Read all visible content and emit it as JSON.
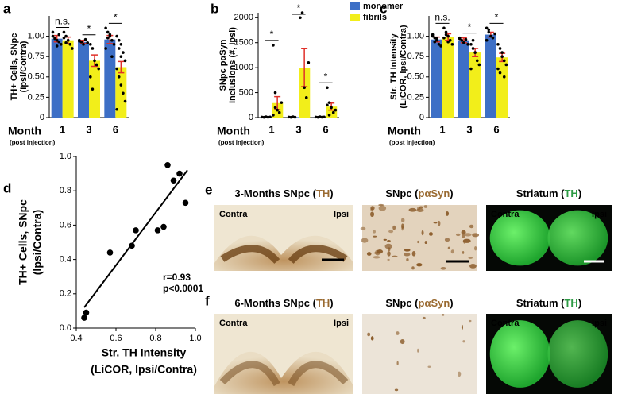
{
  "chart_data": [
    {
      "type": "bar",
      "panel_label": "a",
      "ylabel": [
        "TH+ Cells, SNpc",
        "(Ipsi/Contra)"
      ],
      "xlabel": "Month",
      "xlabel_note": "(post injection)",
      "categories": [
        "1",
        "3",
        "6"
      ],
      "ylim": [
        0,
        1.25
      ],
      "yticks": [
        0,
        0.25,
        {
          "value": 0.5,
          "label": "0.50"
        },
        0.75,
        {
          "value": 1,
          "label": "1.00"
        }
      ],
      "significance": [
        "n.s.",
        "*",
        "*"
      ],
      "series": [
        {
          "name": "monomer",
          "color": "#3d6fc6",
          "values": [
            0.97,
            0.93,
            0.96
          ],
          "errors": [
            0.04,
            0.02,
            0.05
          ],
          "points": [
            [
              1.0,
              0.98,
              0.95,
              0.93,
              0.9,
              1.05,
              0.97,
              0.88,
              1.02
            ],
            [
              0.95,
              0.93,
              0.9,
              0.96,
              0.92,
              0.94
            ],
            [
              1.1,
              1.05,
              1.0,
              0.95,
              0.9,
              0.85,
              0.98,
              1.02,
              0.75
            ]
          ]
        },
        {
          "name": "fibrils",
          "color": "#f2ee1a",
          "values": [
            0.95,
            0.7,
            0.62
          ],
          "errors": [
            0.04,
            0.07,
            0.07
          ],
          "points": [
            [
              1.05,
              1.0,
              0.95,
              0.9,
              0.85,
              0.98,
              0.92
            ],
            [
              0.9,
              0.85,
              0.7,
              0.65,
              0.6,
              0.5,
              0.35
            ],
            [
              1.0,
              0.95,
              0.9,
              0.8,
              0.7,
              0.6,
              0.5,
              0.4,
              0.3,
              0.2,
              0.1,
              0.85,
              0.75
            ]
          ]
        }
      ]
    },
    {
      "type": "bar",
      "panel_label": "b",
      "ylabel": [
        "SNpc pαSyn",
        "Inclusions (#, Ipsi)"
      ],
      "xlabel": "Month",
      "xlabel_note": "(post injection)",
      "categories": [
        "1",
        "3",
        "6"
      ],
      "ylim": [
        0,
        2100
      ],
      "yticks": [
        0,
        500,
        1000,
        1500,
        2000
      ],
      "significance": [
        "*",
        "*",
        "*"
      ],
      "legend": "upper right",
      "series": [
        {
          "name": "monomer",
          "color": "#3d6fc6",
          "values": [
            10,
            10,
            10
          ],
          "errors": [
            5,
            5,
            5
          ],
          "points": [
            [
              10,
              5,
              15,
              8,
              12
            ],
            [
              10,
              5,
              15,
              8
            ],
            [
              10,
              5,
              15,
              8,
              12
            ]
          ]
        },
        {
          "name": "fibrils",
          "color": "#f2ee1a",
          "values": [
            290,
            1000,
            220
          ],
          "errors": [
            130,
            380,
            70
          ],
          "points": [
            [
              1450,
              200,
              150,
              100,
              300,
              50,
              500
            ],
            [
              2000,
              2100,
              600,
              400,
              1100
            ],
            [
              600,
              300,
              200,
              100,
              150,
              250,
              50
            ]
          ]
        }
      ]
    },
    {
      "type": "bar",
      "panel_label": "c",
      "ylabel": [
        "Str. TH Intensity",
        "(LiCOR, Ipsi/Contra)"
      ],
      "xlabel": "Month",
      "xlabel_note": "(post injection)",
      "categories": [
        "1",
        "3",
        "6"
      ],
      "ylim": [
        0,
        1.25
      ],
      "yticks": [
        0,
        0.25,
        {
          "value": 0.5,
          "label": "0.50"
        },
        0.75,
        {
          "value": 1,
          "label": "1.00"
        }
      ],
      "significance": [
        "n.s.",
        "*",
        "*"
      ],
      "series": [
        {
          "name": "monomer",
          "color": "#3d6fc6",
          "values": [
            0.96,
            0.95,
            1.02
          ],
          "errors": [
            0.03,
            0.03,
            0.03
          ],
          "points": [
            [
              1.0,
              0.98,
              0.95,
              0.9,
              0.88,
              1.02,
              0.93,
              0.97
            ],
            [
              0.98,
              0.95,
              0.92,
              0.96,
              0.9,
              0.97
            ],
            [
              1.1,
              1.05,
              1.0,
              0.98,
              1.03,
              0.95,
              1.08
            ]
          ]
        },
        {
          "name": "fibrils",
          "color": "#f2ee1a",
          "values": [
            0.99,
            0.8,
            0.74
          ],
          "errors": [
            0.04,
            0.05,
            0.05
          ],
          "points": [
            [
              1.1,
              1.05,
              1.0,
              0.95,
              0.9,
              0.98,
              1.02,
              0.93
            ],
            [
              0.9,
              0.85,
              0.8,
              0.7,
              0.65,
              0.6,
              0.95
            ],
            [
              0.9,
              0.85,
              0.8,
              0.7,
              0.65,
              0.6,
              0.55,
              0.75,
              0.5
            ]
          ]
        }
      ]
    },
    {
      "type": "scatter",
      "panel_label": "d",
      "ylabel": [
        "TH+ Cells, SNpc",
        "(Ipsi/Contra)"
      ],
      "xlabel": [
        "Str. TH Intensity",
        "(LiCOR, Ipsi/Contra)"
      ],
      "xlim": [
        0.4,
        1.0
      ],
      "xticks": [
        0.4,
        0.6,
        0.8,
        {
          "value": 1,
          "label": "1.0"
        }
      ],
      "ylim": [
        0,
        1
      ],
      "yticks": [
        {
          "value": 0,
          "label": "0.0"
        },
        0.2,
        0.4,
        0.6,
        0.8,
        {
          "value": 1,
          "label": "1.0"
        }
      ],
      "x": [
        0.44,
        0.45,
        0.57,
        0.68,
        0.7,
        0.81,
        0.84,
        0.86,
        0.89,
        0.92,
        0.95
      ],
      "y": [
        0.06,
        0.09,
        0.44,
        0.48,
        0.57,
        0.57,
        0.59,
        0.95,
        0.86,
        0.9,
        0.73
      ],
      "color": "#000000",
      "fit": {
        "x": [
          0.44,
          0.96
        ],
        "y": [
          0.12,
          0.92
        ]
      },
      "annotations": [
        "r=0.93",
        "p<0.0001"
      ]
    }
  ],
  "images": [
    {
      "panel": "e",
      "tiles": [
        {
          "title": [
            "3-Months SNpc (",
            "TH",
            ")"
          ],
          "accent": "#9a6a30",
          "labels": [
            "Contra",
            "Ipsi"
          ]
        },
        {
          "title": [
            "SNpc (",
            "pαSyn",
            ")"
          ],
          "accent": "#9a6a30"
        },
        {
          "title": [
            "Striatum (",
            "TH",
            ")"
          ],
          "accent": "#2e9b45",
          "labels": [
            "Contra",
            "Ipsi"
          ]
        }
      ]
    },
    {
      "panel": "f",
      "tiles": [
        {
          "title": [
            "6-Months SNpc (",
            "TH",
            ")"
          ],
          "accent": "#9a6a30",
          "labels": [
            "Contra",
            "Ipsi"
          ]
        },
        {
          "title": [
            "SNpc (",
            "pαSyn",
            ")"
          ],
          "accent": "#9a6a30"
        },
        {
          "title": [
            "Striatum (",
            "TH",
            ")"
          ],
          "accent": "#2e9b45",
          "labels": [
            "Contra",
            "Ipsi"
          ]
        }
      ]
    }
  ]
}
